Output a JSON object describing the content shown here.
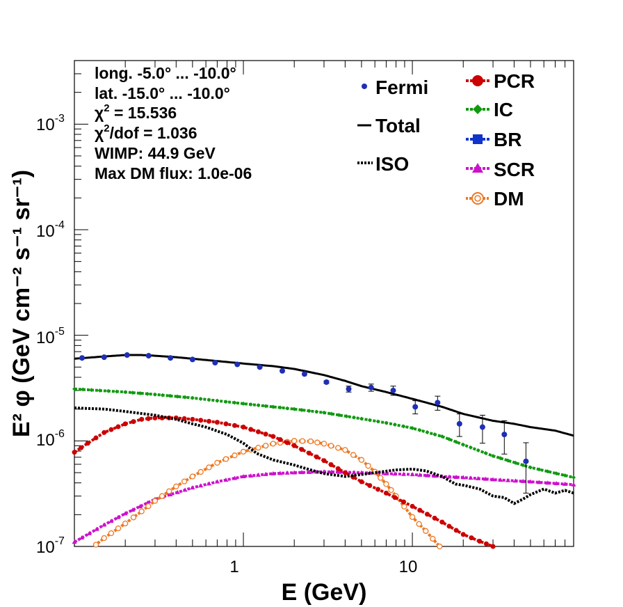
{
  "chart_data": {
    "type": "line",
    "x_scale": "log",
    "y_scale": "log",
    "xlim": [
      0.1,
      90
    ],
    "ylim": [
      1e-07,
      0.004
    ],
    "xlabel": "E (GeV)",
    "ylabel": "E² φ (GeV cm⁻² s⁻¹ sr⁻¹)",
    "x_tick_labels": [
      {
        "value": 1,
        "label": "1"
      },
      {
        "value": 10,
        "label": "10"
      }
    ],
    "y_tick_labels": [
      {
        "value": 1e-07,
        "mant": "10",
        "exp": "-7"
      },
      {
        "value": 1e-06,
        "mant": "10",
        "exp": "-6"
      },
      {
        "value": 1e-05,
        "mant": "10",
        "exp": "-5"
      },
      {
        "value": 0.0001,
        "mant": "10",
        "exp": "-4"
      },
      {
        "value": 0.001,
        "mant": "10",
        "exp": "-3"
      }
    ],
    "annotations": {
      "longitude": "long. -5.0° ... -10.0°",
      "latitude": "lat. -15.0° ... -10.0°",
      "chi2_label": "χ",
      "chi2_value": " = 15.536",
      "chi2dof_label": "χ",
      "chi2dof_value": "/dof = 1.036",
      "chi2_power": "2",
      "wimp": "WIMP: 44.9 GeV",
      "max_dm_flux": "Max DM flux: 1.0e-06"
    },
    "legend": {
      "fermi": "Fermi",
      "total": "Total",
      "iso": "ISO",
      "pcr": "PCR",
      "ic": "IC",
      "br": "BR",
      "scr": "SCR",
      "dm": "DM"
    },
    "colors": {
      "fermi": "#1f2fb5",
      "total": "#000000",
      "iso": "#000000",
      "pcr": "#cc0000",
      "ic": "#119911",
      "br": "#1133cc",
      "scr": "#cc11cc",
      "dm": "#ee7722"
    },
    "fermi": [
      {
        "x": 0.111,
        "y": 6.1e-06,
        "yerr": 0
      },
      {
        "x": 0.15,
        "y": 6.2e-06,
        "yerr": 0
      },
      {
        "x": 0.205,
        "y": 6.5e-06,
        "yerr": 0
      },
      {
        "x": 0.275,
        "y": 6.4e-06,
        "yerr": 0
      },
      {
        "x": 0.37,
        "y": 6.1e-06,
        "yerr": 0
      },
      {
        "x": 0.5,
        "y": 5.9e-06,
        "yerr": 0
      },
      {
        "x": 0.68,
        "y": 5.5e-06,
        "yerr": 0
      },
      {
        "x": 0.92,
        "y": 5.3e-06,
        "yerr": 0
      },
      {
        "x": 1.25,
        "y": 5e-06,
        "yerr": 0
      },
      {
        "x": 1.7,
        "y": 4.6e-06,
        "yerr": 0
      },
      {
        "x": 2.3,
        "y": 4.3e-06,
        "yerr": 0
      },
      {
        "x": 3.1,
        "y": 3.6e-06,
        "yerr": 1e-07
      },
      {
        "x": 4.2,
        "y": 3.1e-06,
        "yerr": 2e-07
      },
      {
        "x": 5.7,
        "y": 3.2e-06,
        "yerr": 2.5e-07
      },
      {
        "x": 7.7,
        "y": 3e-06,
        "yerr": 3e-07
      },
      {
        "x": 10.4,
        "y": 2.1e-06,
        "yerr": 3e-07
      },
      {
        "x": 14.1,
        "y": 2.3e-06,
        "yerr": 3.5e-07
      },
      {
        "x": 19.0,
        "y": 1.45e-06,
        "yerr": 3.5e-07
      },
      {
        "x": 26.0,
        "y": 1.35e-06,
        "yerr": 4e-07
      },
      {
        "x": 35.0,
        "y": 1.15e-06,
        "yerr": 4e-07
      },
      {
        "x": 47.0,
        "y": 6.4e-07,
        "yerr": 3.2e-07
      }
    ],
    "series": [
      {
        "key": "total",
        "style": "solid",
        "x": [
          0.1,
          0.15,
          0.2,
          0.25,
          0.3,
          0.4,
          0.5,
          0.7,
          1,
          1.5,
          2,
          3,
          4,
          5,
          7,
          10,
          15,
          20,
          30,
          40,
          50,
          70,
          90
        ],
        "y": [
          6e-06,
          6.3e-06,
          6.5e-06,
          6.5e-06,
          6.4e-06,
          6.2e-06,
          6e-06,
          5.7e-06,
          5.4e-06,
          5.1e-06,
          4.8e-06,
          4.2e-06,
          3.7e-06,
          3.3e-06,
          2.9e-06,
          2.5e-06,
          2.1e-06,
          1.8e-06,
          1.55e-06,
          1.45e-06,
          1.35e-06,
          1.25e-06,
          1.12e-06
        ]
      },
      {
        "key": "ic",
        "style": "dashmarker",
        "x": [
          0.1,
          0.2,
          0.3,
          0.5,
          0.7,
          1,
          1.5,
          2,
          3,
          5,
          7,
          10,
          15,
          20,
          30,
          50,
          90
        ],
        "y": [
          3.1e-06,
          2.9e-06,
          2.75e-06,
          2.55e-06,
          2.4e-06,
          2.25e-06,
          2.1e-06,
          2e-06,
          1.85e-06,
          1.62e-06,
          1.48e-06,
          1.32e-06,
          1.1e-06,
          9.2e-07,
          7.2e-07,
          5.6e-07,
          4.5e-07
        ]
      },
      {
        "key": "iso",
        "style": "dotted",
        "x": [
          0.1,
          0.15,
          0.2,
          0.3,
          0.4,
          0.5,
          0.6,
          0.8,
          1,
          1.2,
          1.5,
          2,
          2.5,
          3,
          4,
          5,
          6,
          8,
          10,
          12,
          15,
          18,
          20,
          25,
          30,
          35,
          40,
          45,
          50,
          60,
          70,
          80,
          90
        ],
        "y": [
          2.05e-06,
          2e-06,
          1.9e-06,
          1.75e-06,
          1.6e-06,
          1.45e-06,
          1.35e-06,
          1.15e-06,
          9.5e-07,
          7.6e-07,
          6.6e-07,
          5.9e-07,
          5.3e-07,
          4.9e-07,
          4.6e-07,
          4.8e-07,
          5e-07,
          5.3e-07,
          5.4e-07,
          5.2e-07,
          4.6e-07,
          3.9e-07,
          3.8e-07,
          3.5e-07,
          3e-07,
          2.9e-07,
          2.55e-07,
          2.8e-07,
          3.1e-07,
          3.5e-07,
          3.2e-07,
          3.4e-07,
          3.2e-07
        ]
      },
      {
        "key": "pcr",
        "style": "dashmarker",
        "x": [
          0.1,
          0.12,
          0.15,
          0.2,
          0.25,
          0.3,
          0.4,
          0.5,
          0.7,
          1,
          1.5,
          2,
          3,
          4,
          5,
          7,
          10,
          15,
          20,
          25,
          30
        ],
        "y": [
          7.8e-07,
          9.5e-07,
          1.2e-06,
          1.45e-06,
          1.6e-06,
          1.65e-06,
          1.65e-06,
          1.6e-06,
          1.5e-06,
          1.35e-06,
          1.1e-06,
          9e-07,
          6.5e-07,
          5e-07,
          4.1e-07,
          3.2e-07,
          2.4e-07,
          1.7e-07,
          1.3e-07,
          1.12e-07,
          1e-07
        ]
      },
      {
        "key": "scr",
        "style": "dashmarker",
        "x": [
          0.1,
          0.15,
          0.2,
          0.3,
          0.5,
          0.7,
          1,
          1.5,
          2,
          3,
          5,
          7,
          10,
          15,
          20,
          30,
          50,
          90
        ],
        "y": [
          1.1e-07,
          1.6e-07,
          2.05e-07,
          2.8e-07,
          3.6e-07,
          4.1e-07,
          4.6e-07,
          4.9e-07,
          5e-07,
          5.1e-07,
          5e-07,
          4.9e-07,
          4.8e-07,
          4.6e-07,
          4.5e-07,
          4.3e-07,
          4.1e-07,
          3.85e-07
        ]
      },
      {
        "key": "dm",
        "style": "dashmarker",
        "x": [
          0.12,
          0.15,
          0.2,
          0.25,
          0.3,
          0.4,
          0.5,
          0.7,
          1,
          1.5,
          2,
          2.5,
          3,
          4,
          5,
          6,
          7,
          8,
          10,
          12,
          14.5
        ],
        "y": [
          9e-08,
          1.2e-07,
          1.65e-07,
          2.15e-07,
          2.7e-07,
          3.7e-07,
          4.6e-07,
          6.2e-07,
          7.9e-07,
          9.4e-07,
          1e-06,
          9.9e-07,
          9.4e-07,
          8.2e-07,
          6.6e-07,
          5.1e-07,
          3.9e-07,
          3e-07,
          1.9e-07,
          1.4e-07,
          1e-07
        ]
      }
    ]
  }
}
